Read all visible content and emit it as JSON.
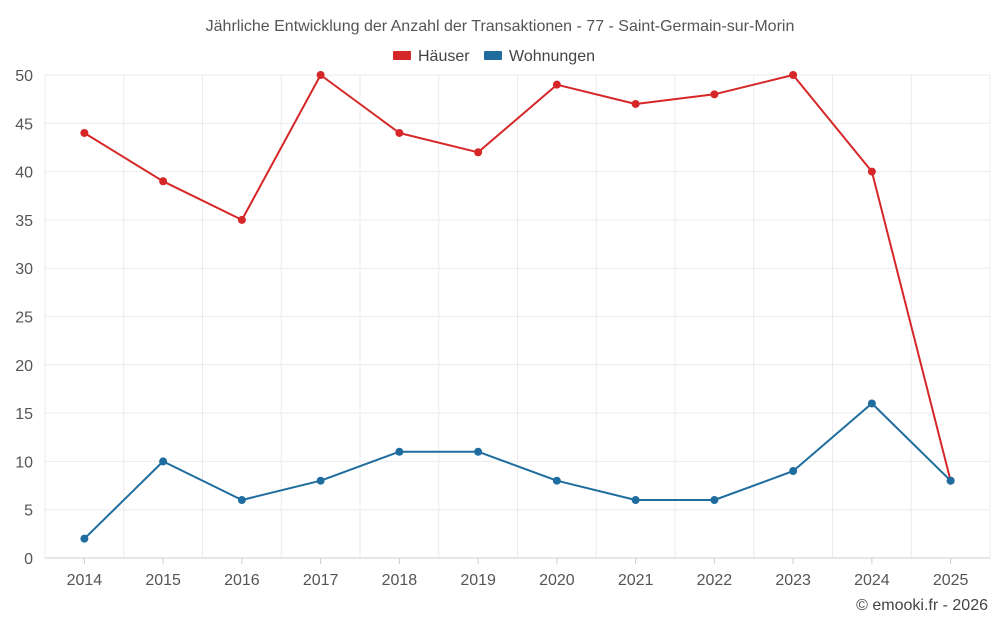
{
  "chart_data": {
    "type": "line",
    "title": "Jährliche Entwicklung der Anzahl der Transaktionen - 77 - Saint-Germain-sur-Morin",
    "categories": [
      "2014",
      "2015",
      "2016",
      "2017",
      "2018",
      "2019",
      "2020",
      "2021",
      "2022",
      "2023",
      "2024",
      "2025"
    ],
    "series": [
      {
        "name": "Häuser",
        "color": "#d62728",
        "values": [
          44,
          39,
          35,
          50,
          44,
          42,
          49,
          47,
          48,
          50,
          40,
          8
        ]
      },
      {
        "name": "Wohnungen",
        "color": "#1f6d9e",
        "values": [
          2,
          10,
          6,
          8,
          11,
          11,
          8,
          6,
          6,
          9,
          16,
          8
        ]
      }
    ],
    "ylim": [
      0,
      50
    ],
    "yticks": [
      0,
      5,
      10,
      15,
      20,
      25,
      30,
      35,
      40,
      45,
      50
    ],
    "xlabel": "",
    "ylabel": "",
    "grid": true,
    "legend_position": "top-center"
  },
  "credit": "© emooki.fr - 2026"
}
